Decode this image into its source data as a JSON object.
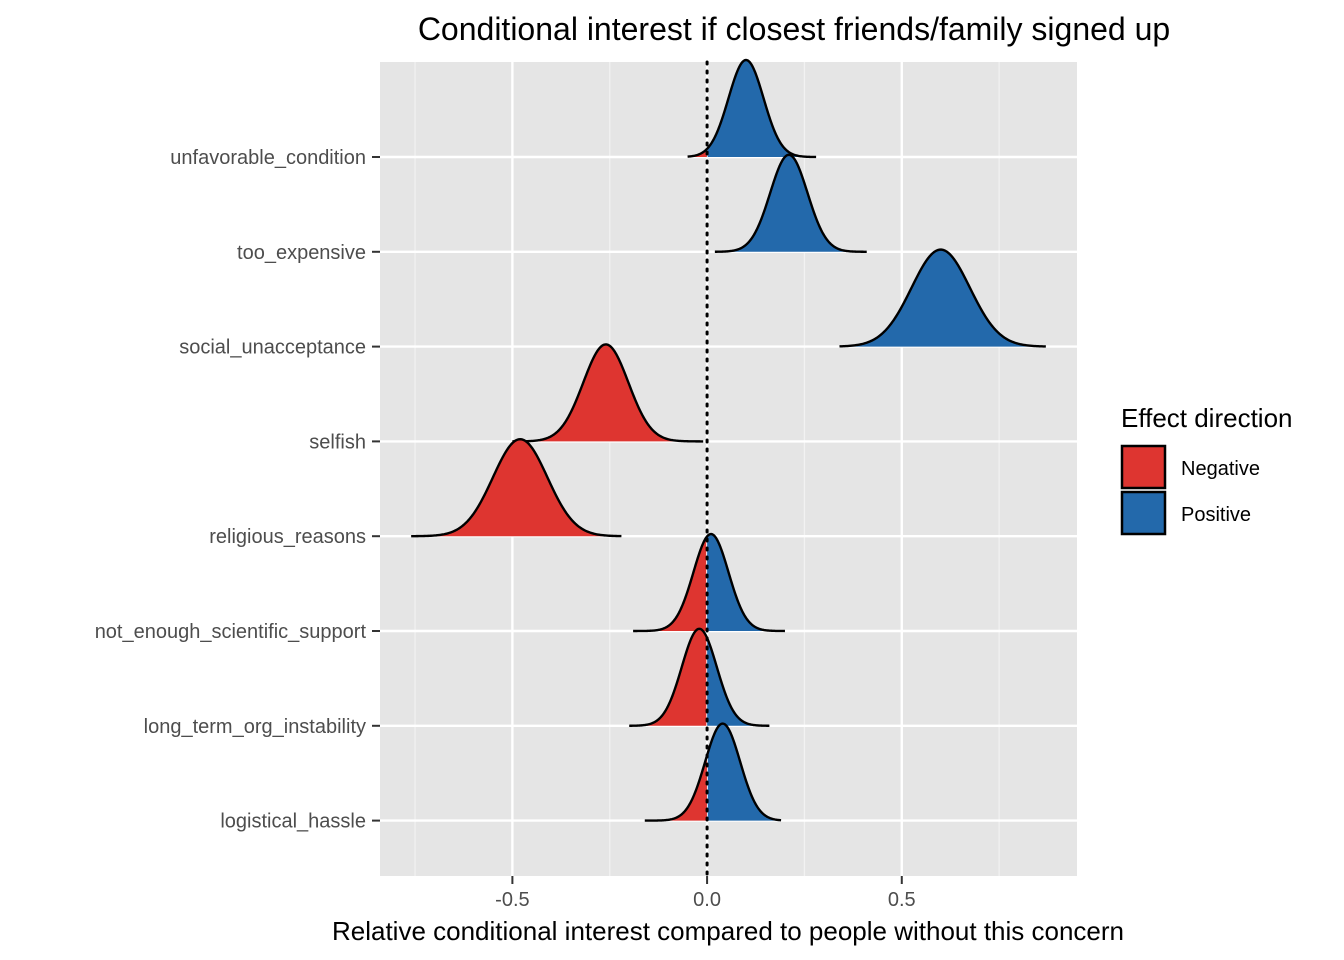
{
  "chart_data": {
    "type": "ridgeline",
    "title": "Conditional interest if closest friends/family signed up",
    "xlabel": "Relative conditional interest compared to people without this concern",
    "ylabel": "",
    "xlim": [
      -0.84,
      0.95
    ],
    "x_ticks": [
      -0.5,
      0.0,
      0.5
    ],
    "x_tick_labels": [
      "-0.5",
      "0.0",
      "0.5"
    ],
    "grid": true,
    "reference_line": {
      "x": 0,
      "style": "dotted"
    },
    "categories": [
      "unfavorable_condition",
      "too_expensive",
      "social_unacceptance",
      "selfish",
      "religious_reasons",
      "not_enough_scientific_support",
      "long_term_org_instability",
      "logistical_hassle"
    ],
    "distributions": [
      {
        "category": "unfavorable_condition",
        "peak": 0.1,
        "sd": 0.045,
        "min": -0.05,
        "max": 0.28
      },
      {
        "category": "too_expensive",
        "peak": 0.21,
        "sd": 0.048,
        "min": 0.02,
        "max": 0.41
      },
      {
        "category": "social_unacceptance",
        "peak": 0.6,
        "sd": 0.075,
        "min": 0.34,
        "max": 0.87
      },
      {
        "category": "selfish",
        "peak": -0.26,
        "sd": 0.058,
        "min": -0.5,
        "max": -0.01
      },
      {
        "category": "religious_reasons",
        "peak": -0.48,
        "sd": 0.07,
        "min": -0.76,
        "max": -0.22
      },
      {
        "category": "not_enough_scientific_support",
        "peak": 0.01,
        "sd": 0.045,
        "min": -0.19,
        "max": 0.2
      },
      {
        "category": "long_term_org_instability",
        "peak": -0.02,
        "sd": 0.045,
        "min": -0.2,
        "max": 0.16
      },
      {
        "category": "logistical_hassle",
        "peak": 0.04,
        "sd": 0.045,
        "min": -0.16,
        "max": 0.19
      }
    ],
    "legend": {
      "title": "Effect direction",
      "position": "right",
      "entries": [
        {
          "label": "Negative",
          "color": "#de3530"
        },
        {
          "label": "Positive",
          "color": "#2369ab"
        }
      ]
    }
  }
}
